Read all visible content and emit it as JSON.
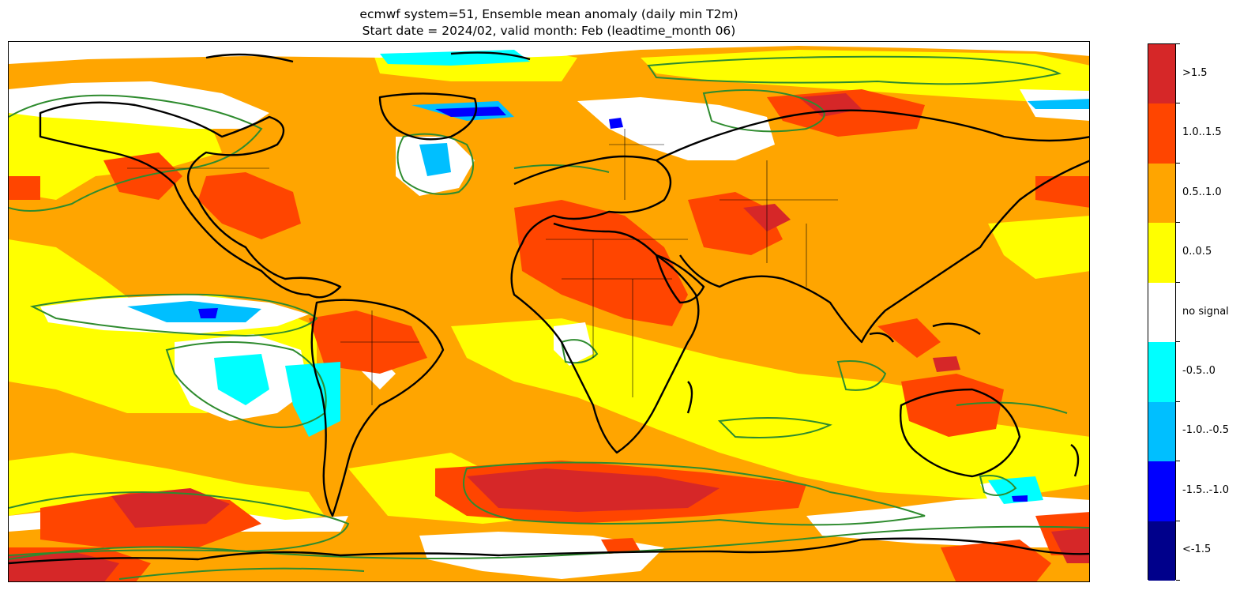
{
  "title": {
    "line1": "ecmwf system=51, Ensemble mean anomaly (daily min T2m)",
    "line2": "Start date = 2024/02, valid month: Feb (leadtime_month 06)"
  },
  "legend": {
    "items": [
      {
        "label": ">1.5",
        "color": "#d62728"
      },
      {
        "label": "1.0..1.5",
        "color": "#ff4500"
      },
      {
        "label": "0.5..1.0",
        "color": "#ffa500"
      },
      {
        "label": "0..0.5",
        "color": "#ffff00"
      },
      {
        "label": "no signal",
        "color": "#ffffff"
      },
      {
        "label": "-0.5..0",
        "color": "#00ffff"
      },
      {
        "label": "-1.0..-0.5",
        "color": "#00bfff"
      },
      {
        "label": "-1.5..-1.0",
        "color": "#0000ff"
      },
      {
        "label": "<-1.5",
        "color": "#00008b"
      }
    ]
  },
  "colors": {
    "coastline": "#000000",
    "significance_contour": "#2e8b2e",
    "background_anomaly": "#ffa500"
  }
}
